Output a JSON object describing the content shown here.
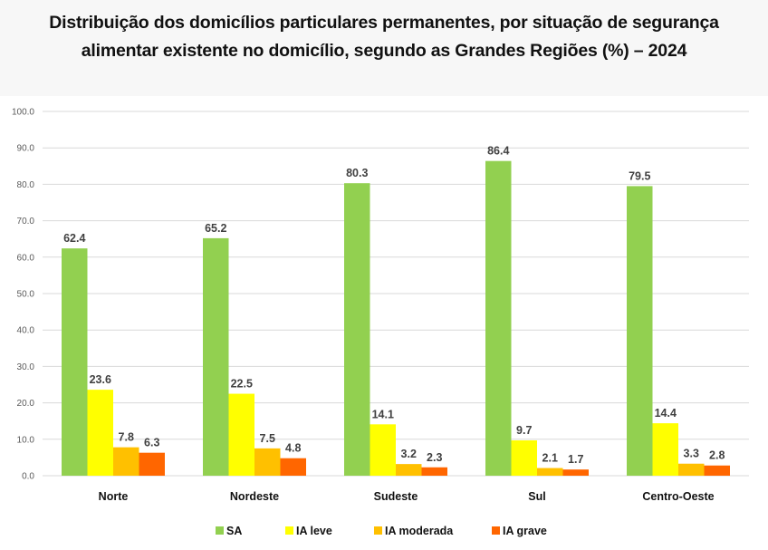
{
  "title_lines": [
    "Distribuição dos domicílios particulares permanentes, por situação de segurança",
    "alimentar existente no domicílio, segundo as Grandes Regiões (%) – 2024"
  ],
  "chart_data": {
    "type": "bar",
    "title": "Distribuição dos domicílios particulares permanentes, por situação de segurança alimentar existente no domicílio, segundo as Grandes Regiões (%) – 2024",
    "xlabel": "",
    "ylabel": "",
    "ylim": [
      0,
      100
    ],
    "yticks": [
      0,
      10,
      20,
      30,
      40,
      50,
      60,
      70,
      80,
      90,
      100
    ],
    "ytick_labels": [
      "0.0",
      "10.0",
      "20.0",
      "30.0",
      "40.0",
      "50.0",
      "60.0",
      "70.0",
      "80.0",
      "90.0",
      "100.0"
    ],
    "grid": true,
    "legend_position": "bottom",
    "categories": [
      "Norte",
      "Nordeste",
      "Sudeste",
      "Sul",
      "Centro-Oeste"
    ],
    "series": [
      {
        "name": "SA",
        "color": "#92d050",
        "values": [
          62.4,
          65.2,
          80.3,
          86.4,
          79.5
        ]
      },
      {
        "name": "IA leve",
        "color": "#ffff00",
        "values": [
          23.6,
          22.5,
          14.1,
          9.7,
          14.4
        ]
      },
      {
        "name": "IA moderada",
        "color": "#ffc000",
        "values": [
          7.8,
          7.5,
          3.2,
          2.1,
          3.3
        ]
      },
      {
        "name": "IA grave",
        "color": "#ff6600",
        "values": [
          6.3,
          4.8,
          2.3,
          1.7,
          2.8
        ]
      }
    ]
  }
}
